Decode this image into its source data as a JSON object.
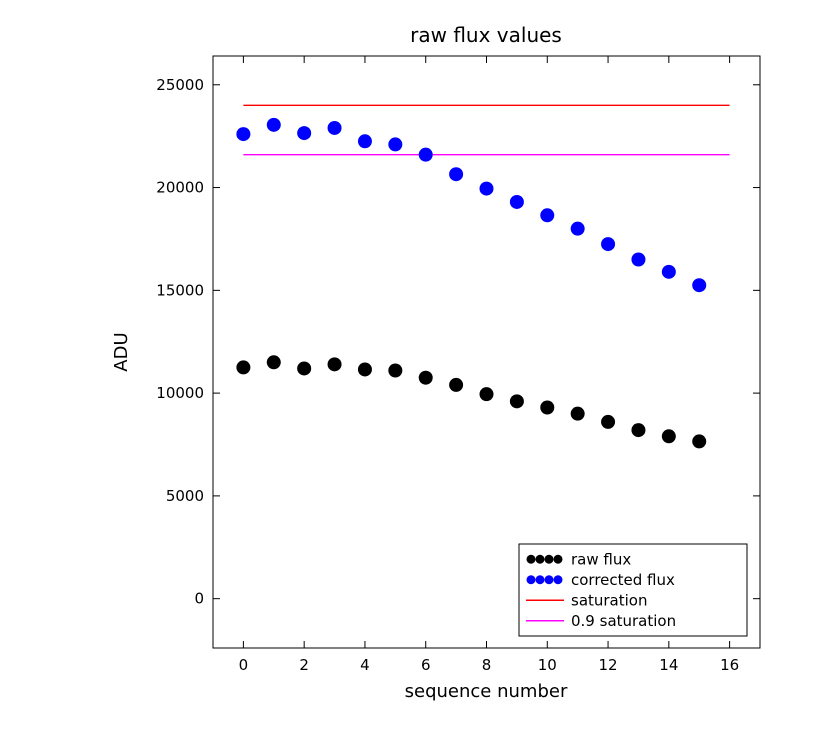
{
  "chart_data": {
    "type": "scatter",
    "title": "raw flux values",
    "xlabel": "sequence number",
    "ylabel": "ADU",
    "xlim": [
      -1,
      17
    ],
    "ylim": [
      -2400,
      26400
    ],
    "xticks": [
      0,
      2,
      4,
      6,
      8,
      10,
      12,
      14,
      16
    ],
    "yticks": [
      0,
      5000,
      10000,
      15000,
      20000,
      25000
    ],
    "grid": false,
    "legend_position": "lower right",
    "x": [
      0,
      1,
      2,
      3,
      4,
      5,
      6,
      7,
      8,
      9,
      10,
      11,
      12,
      13,
      14,
      15
    ],
    "series": [
      {
        "name": "raw flux",
        "kind": "scatter",
        "color": "#000000",
        "values": [
          11250,
          11500,
          11200,
          11400,
          11150,
          11100,
          10750,
          10400,
          9950,
          9600,
          9300,
          9000,
          8600,
          8200,
          7900,
          7650
        ]
      },
      {
        "name": "corrected flux",
        "kind": "scatter",
        "color": "#0000ff",
        "values": [
          22600,
          23050,
          22650,
          22900,
          22250,
          22100,
          21600,
          20650,
          19950,
          19300,
          18650,
          18000,
          17250,
          16500,
          15900,
          15250
        ]
      },
      {
        "name": "saturation",
        "kind": "hline",
        "color": "#ff0000",
        "value": 24000,
        "xspan": [
          0,
          16
        ]
      },
      {
        "name": "0.9 saturation",
        "kind": "hline",
        "color": "#ff00ff",
        "value": 21600,
        "xspan": [
          0,
          16
        ]
      }
    ]
  }
}
